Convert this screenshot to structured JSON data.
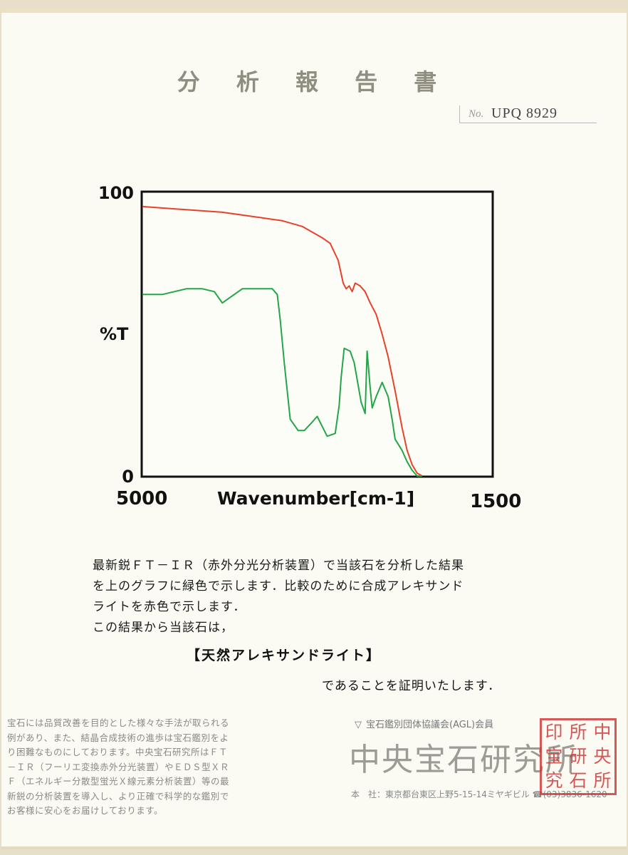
{
  "document": {
    "title": "分 析 報 告 書",
    "serial_prefix": "No.",
    "serial_number": "UPQ 8929"
  },
  "chart_data": {
    "type": "line",
    "ylabel": "%T",
    "xlabel": "Wavenumber[cm-1]",
    "x_tick_labels": [
      "5000",
      "1500"
    ],
    "y_tick_labels": [
      "100",
      "0"
    ],
    "xlim": [
      5000,
      1500
    ],
    "ylim": [
      0,
      100
    ],
    "grid": false,
    "series": [
      {
        "color": "#e8412a",
        "x": [
          5000,
          4600,
          4200,
          3800,
          3600,
          3400,
          3200,
          3120,
          3040,
          2990,
          2960,
          2930,
          2900,
          2870,
          2820,
          2770,
          2720,
          2660,
          2600,
          2540,
          2470,
          2400,
          2350,
          2300,
          2250,
          2200
        ],
        "y": [
          95,
          94,
          93,
          91,
          90,
          88,
          84,
          82,
          76,
          68,
          66,
          67,
          65,
          68,
          67,
          65,
          61,
          57,
          50,
          42,
          30,
          17,
          9,
          4,
          1,
          0
        ]
      },
      {
        "color": "#22a646",
        "x": [
          5000,
          4800,
          4560,
          4400,
          4280,
          4200,
          4000,
          3800,
          3700,
          3650,
          3620,
          3580,
          3520,
          3440,
          3380,
          3300,
          3250,
          3150,
          3070,
          3030,
          3010,
          2980,
          2920,
          2880,
          2850,
          2810,
          2770,
          2750,
          2720,
          2700,
          2660,
          2600,
          2540,
          2500,
          2470,
          2400,
          2350,
          2300,
          2250,
          2200
        ],
        "y": [
          64,
          64,
          66,
          66,
          65,
          61,
          66,
          66,
          66,
          64,
          55,
          40,
          20,
          16,
          16,
          19,
          21,
          14,
          15,
          25,
          35,
          45,
          44,
          40,
          34,
          26,
          22,
          44,
          31,
          24,
          28,
          33,
          28,
          20,
          13,
          9,
          5,
          2,
          0,
          0
        ]
      }
    ]
  },
  "body": {
    "line1": "最新鋭ＦＴ－ＩＲ（赤外分光分析装置）で当該石を分析した結果",
    "line2": "を上のグラフに緑色で示します．比較のために合成アレキサンド",
    "line3": "ライトを赤色で示します．",
    "line4": "この結果から当該石は，",
    "stone": "【天然アレキサンドライト】",
    "certify": "であることを証明いたします．"
  },
  "footer": {
    "note_lines": [
      "宝石には品質改善を目的とした様々な手法が取られる",
      "例があり、また、結晶合成技術の進歩は宝石鑑別をよ",
      "り困難なものにしております。中央宝石研究所はＦＴ",
      "－ＩＲ（フーリエ変換赤外分光装置）やＥＤＳ型ＸＲ",
      "Ｆ（エネルギー分散型蛍光Ｘ線元素分析装置）等の最",
      "新鋭の分析装置を導入し、より正確で科学的な鑑別で",
      "お客様に安心をお届けしております。"
    ],
    "association": "宝石鑑別団体協議会(AGL)会員",
    "organization": "中央宝石研究所",
    "address": "本　社：東京都台東区上野5-15-14ミヤギビル ☎(03)3836-1620"
  },
  "seal": {
    "chars": [
      "印",
      "所",
      "中",
      "宝",
      "研",
      "央",
      "究",
      "石",
      "所"
    ]
  }
}
